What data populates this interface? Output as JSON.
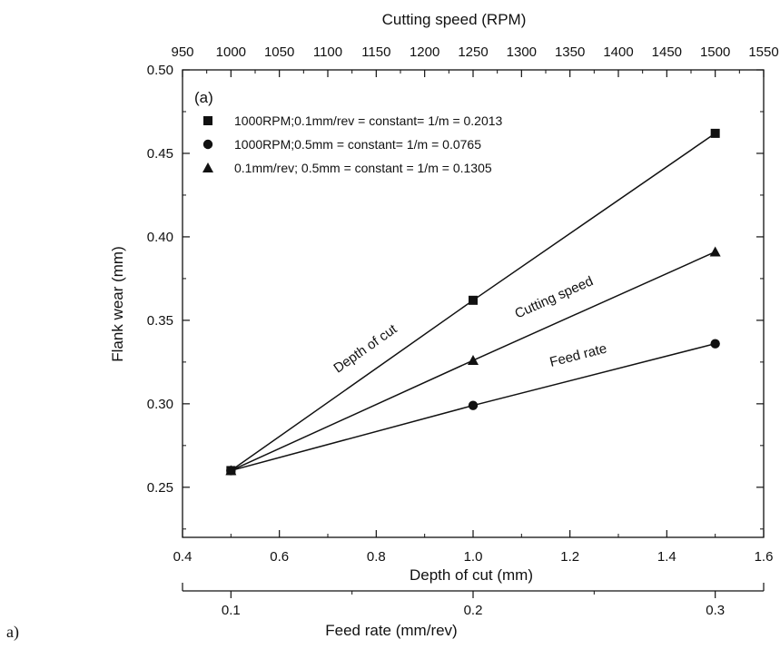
{
  "figure_label": "a)",
  "chart_data": {
    "type": "line",
    "panel_label": "(a)",
    "ylabel": "Flank wear (mm)",
    "ylim": [
      0.22,
      0.5
    ],
    "yticks": [
      0.25,
      0.3,
      0.35,
      0.4,
      0.45,
      0.5
    ],
    "ytick_labels": [
      "0.25",
      "0.30",
      "0.35",
      "0.40",
      "0.45",
      "0.50"
    ],
    "xlabel_bottom": "Depth of cut (mm)",
    "xlim_bottom": [
      0.4,
      1.6
    ],
    "xticks_bottom": [
      0.4,
      0.6,
      0.8,
      1.0,
      1.2,
      1.4,
      1.6
    ],
    "xtick_labels_bottom": [
      "0.4",
      "0.6",
      "0.8",
      "1.0",
      "1.2",
      "1.4",
      "1.6"
    ],
    "xlabel_top": "Cutting speed (RPM)",
    "xlim_top": [
      950,
      1550
    ],
    "xticks_top": [
      950,
      1000,
      1050,
      1100,
      1150,
      1200,
      1250,
      1300,
      1350,
      1400,
      1450,
      1500,
      1550
    ],
    "xtick_labels_top": [
      "950",
      "1000",
      "1050",
      "1100",
      "1150",
      "1200",
      "1250",
      "1300",
      "1350",
      "1400",
      "1450",
      "1500",
      "1550"
    ],
    "xlabel_feed": "Feed rate (mm/rev)",
    "feed_axis_ticks": [
      0.1,
      0.2,
      0.3
    ],
    "feed_axis_tick_labels": [
      "0.1",
      "0.2",
      "0.3"
    ],
    "feed_axis_depth_positions": [
      0.5,
      1.0,
      1.5
    ],
    "legend_position": "top-left",
    "grid": false,
    "series": [
      {
        "name": "1000RPM;0.1mm/rev = constant= 1/m = 0.2013",
        "marker": "square",
        "line_label": "Depth of cut",
        "x": [
          0.5,
          1.0,
          1.5
        ],
        "values": [
          0.26,
          0.362,
          0.462
        ]
      },
      {
        "name": "1000RPM;0.5mm   = constant= 1/m = 0.0765",
        "marker": "circle",
        "line_label": "Feed rate",
        "x": [
          0.5,
          1.0,
          1.5
        ],
        "values": [
          0.26,
          0.299,
          0.336
        ]
      },
      {
        "name": "0.1mm/rev; 0.5mm = constant = 1/m =  0.1305",
        "marker": "triangle",
        "line_label": "Cutting speed",
        "x": [
          0.5,
          1.0,
          1.5
        ],
        "values": [
          0.26,
          0.326,
          0.391
        ]
      }
    ]
  }
}
